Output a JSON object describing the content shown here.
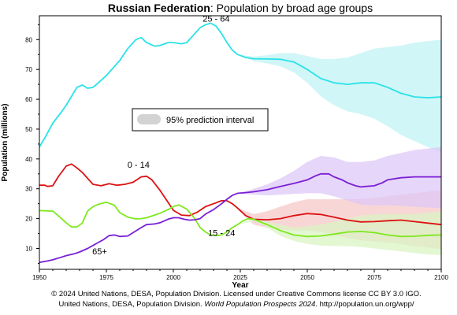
{
  "chart_data": {
    "type": "line",
    "title_bold": "Russian Federation",
    "title_rest": ": Population by broad age groups",
    "xlabel": "Year",
    "ylabel": "Population (millions)",
    "xlim": [
      1950,
      2100
    ],
    "ylim": [
      3,
      88
    ],
    "x_ticks": [
      1950,
      1975,
      2000,
      2025,
      2050,
      2075,
      2100
    ],
    "y_ticks": [
      10,
      20,
      30,
      40,
      50,
      60,
      70,
      80
    ],
    "projection_start": 2024,
    "legend": {
      "label": "95% prediction interval",
      "color": "#d3d3d3",
      "placement": "center-left"
    },
    "series": [
      {
        "name": "25 - 64",
        "color": "#29e2e8",
        "band_color": "#bff2f4",
        "label_x": 2016,
        "label_y": 86,
        "points": [
          [
            1950,
            44
          ],
          [
            1952,
            47
          ],
          [
            1955,
            52
          ],
          [
            1958,
            55.5
          ],
          [
            1960,
            58
          ],
          [
            1962,
            61
          ],
          [
            1964,
            64
          ],
          [
            1966,
            64.8
          ],
          [
            1968,
            63.7
          ],
          [
            1970,
            64
          ],
          [
            1972,
            65.5
          ],
          [
            1975,
            68
          ],
          [
            1978,
            71
          ],
          [
            1980,
            73
          ],
          [
            1983,
            77
          ],
          [
            1986,
            80
          ],
          [
            1988,
            80.7
          ],
          [
            1990,
            79
          ],
          [
            1993,
            77.8
          ],
          [
            1995,
            78
          ],
          [
            1998,
            79
          ],
          [
            2000,
            79
          ],
          [
            2003,
            78.6
          ],
          [
            2005,
            79
          ],
          [
            2008,
            82
          ],
          [
            2010,
            84
          ],
          [
            2012,
            85
          ],
          [
            2014,
            85.5
          ],
          [
            2016,
            84.5
          ],
          [
            2018,
            82
          ],
          [
            2020,
            79
          ],
          [
            2022,
            76.5
          ],
          [
            2024,
            75
          ],
          [
            2027,
            74
          ],
          [
            2030,
            73.6
          ],
          [
            2035,
            73.5
          ],
          [
            2040,
            73.4
          ],
          [
            2045,
            72.5
          ],
          [
            2050,
            70
          ],
          [
            2055,
            67
          ],
          [
            2060,
            65.5
          ],
          [
            2065,
            65
          ],
          [
            2070,
            65.5
          ],
          [
            2075,
            65.5
          ],
          [
            2080,
            64
          ],
          [
            2085,
            62
          ],
          [
            2090,
            60.8
          ],
          [
            2095,
            60.5
          ],
          [
            2100,
            60.8
          ]
        ],
        "band": [
          [
            2024,
            75,
            75
          ],
          [
            2030,
            74.3,
            72.8
          ],
          [
            2035,
            74.8,
            72
          ],
          [
            2040,
            75.5,
            71
          ],
          [
            2045,
            75.5,
            69
          ],
          [
            2050,
            74.5,
            65.5
          ],
          [
            2055,
            73.5,
            61
          ],
          [
            2060,
            73.5,
            58
          ],
          [
            2065,
            74,
            56
          ],
          [
            2070,
            75.5,
            55
          ],
          [
            2075,
            77,
            53.5
          ],
          [
            2080,
            77.5,
            51
          ],
          [
            2085,
            78,
            48
          ],
          [
            2090,
            79,
            46
          ],
          [
            2095,
            79.5,
            44
          ],
          [
            2100,
            80,
            42
          ]
        ]
      },
      {
        "name": "0 - 14",
        "color": "#dd1111",
        "band_color": "#f6c6c6",
        "label_x": 1987,
        "label_y": 37,
        "points": [
          [
            1950,
            31.2
          ],
          [
            1952,
            31.2
          ],
          [
            1953,
            30.8
          ],
          [
            1955,
            31
          ],
          [
            1957,
            34
          ],
          [
            1960,
            37.6
          ],
          [
            1962,
            38.3
          ],
          [
            1964,
            37
          ],
          [
            1966,
            35.5
          ],
          [
            1968,
            33.5
          ],
          [
            1970,
            31.5
          ],
          [
            1973,
            31
          ],
          [
            1976,
            31.7
          ],
          [
            1979,
            31.2
          ],
          [
            1982,
            31.5
          ],
          [
            1985,
            32.2
          ],
          [
            1988,
            34
          ],
          [
            1990,
            34.2
          ],
          [
            1992,
            33
          ],
          [
            1995,
            29.5
          ],
          [
            1998,
            25.5
          ],
          [
            2000,
            22.8
          ],
          [
            2003,
            21.2
          ],
          [
            2006,
            21
          ],
          [
            2009,
            22.2
          ],
          [
            2012,
            24
          ],
          [
            2015,
            25
          ],
          [
            2018,
            26
          ],
          [
            2020,
            26
          ],
          [
            2022,
            25
          ],
          [
            2024,
            23.5
          ],
          [
            2027,
            21
          ],
          [
            2030,
            19.8
          ],
          [
            2035,
            19.6
          ],
          [
            2040,
            20
          ],
          [
            2045,
            21
          ],
          [
            2050,
            21.7
          ],
          [
            2055,
            21.4
          ],
          [
            2060,
            20.5
          ],
          [
            2065,
            19.5
          ],
          [
            2070,
            18.9
          ],
          [
            2075,
            19
          ],
          [
            2080,
            19.3
          ],
          [
            2085,
            19.5
          ],
          [
            2090,
            19
          ],
          [
            2095,
            18.5
          ],
          [
            2100,
            18
          ]
        ],
        "band": [
          [
            2024,
            23.5,
            23.5
          ],
          [
            2030,
            21.5,
            18
          ],
          [
            2035,
            22.5,
            17
          ],
          [
            2040,
            24,
            16.3
          ],
          [
            2045,
            25.5,
            16
          ],
          [
            2050,
            26.5,
            16
          ],
          [
            2055,
            26.5,
            15.5
          ],
          [
            2060,
            26.5,
            14.5
          ],
          [
            2065,
            26.5,
            13.5
          ],
          [
            2070,
            26.5,
            12.7
          ],
          [
            2075,
            27,
            12.3
          ],
          [
            2080,
            27.5,
            12
          ],
          [
            2085,
            28,
            11.5
          ],
          [
            2090,
            28.5,
            10.8
          ],
          [
            2095,
            29,
            10.3
          ],
          [
            2100,
            29.5,
            9.8
          ]
        ]
      },
      {
        "name": "15 - 24",
        "color": "#7ee81e",
        "band_color": "#d8f4c2",
        "label_x": 2018,
        "label_y": 14.2,
        "points": [
          [
            1950,
            22.7
          ],
          [
            1953,
            22.6
          ],
          [
            1955,
            22.5
          ],
          [
            1957,
            21
          ],
          [
            1960,
            18.6
          ],
          [
            1962,
            17.2
          ],
          [
            1964,
            17.2
          ],
          [
            1966,
            18.5
          ],
          [
            1968,
            22.5
          ],
          [
            1970,
            24
          ],
          [
            1972,
            24.8
          ],
          [
            1975,
            25.5
          ],
          [
            1978,
            24.5
          ],
          [
            1980,
            22
          ],
          [
            1983,
            20.5
          ],
          [
            1986,
            19.9
          ],
          [
            1988,
            20
          ],
          [
            1990,
            20.3
          ],
          [
            1993,
            21.2
          ],
          [
            1995,
            21.8
          ],
          [
            1998,
            23
          ],
          [
            2000,
            24
          ],
          [
            2002,
            24.6
          ],
          [
            2005,
            23.2
          ],
          [
            2008,
            20
          ],
          [
            2010,
            17
          ],
          [
            2012,
            15.5
          ],
          [
            2014,
            14.5
          ],
          [
            2016,
            14.3
          ],
          [
            2018,
            14.5
          ],
          [
            2020,
            15.5
          ],
          [
            2022,
            17
          ],
          [
            2024,
            18
          ],
          [
            2026,
            19.3
          ],
          [
            2028,
            20
          ],
          [
            2030,
            19.8
          ],
          [
            2035,
            18
          ],
          [
            2040,
            16
          ],
          [
            2045,
            14.5
          ],
          [
            2050,
            14
          ],
          [
            2055,
            14.2
          ],
          [
            2060,
            14.8
          ],
          [
            2065,
            15.5
          ],
          [
            2070,
            15.7
          ],
          [
            2075,
            15.3
          ],
          [
            2080,
            14.5
          ],
          [
            2085,
            14
          ],
          [
            2090,
            14.1
          ],
          [
            2095,
            14.4
          ],
          [
            2100,
            14.5
          ]
        ],
        "band": [
          [
            2024,
            18,
            18
          ],
          [
            2030,
            20.3,
            19.2
          ],
          [
            2035,
            19,
            17
          ],
          [
            2040,
            18,
            14.2
          ],
          [
            2045,
            17,
            12.5
          ],
          [
            2050,
            17.5,
            11.5
          ],
          [
            2055,
            18,
            11
          ],
          [
            2060,
            19,
            10.8
          ],
          [
            2065,
            20,
            10.8
          ],
          [
            2070,
            21,
            10.5
          ],
          [
            2075,
            21.5,
            10
          ],
          [
            2080,
            21.5,
            9.5
          ],
          [
            2085,
            21.5,
            9
          ],
          [
            2090,
            21.5,
            8.5
          ],
          [
            2095,
            22,
            8
          ],
          [
            2100,
            22.5,
            7.8
          ]
        ]
      },
      {
        "name": "65+",
        "color": "#7a1fd6",
        "band_color": "#dcc6f7",
        "label_x": 1972.5,
        "label_y": 8,
        "points": [
          [
            1950,
            5.3
          ],
          [
            1953,
            5.8
          ],
          [
            1955,
            6.2
          ],
          [
            1958,
            7
          ],
          [
            1960,
            7.6
          ],
          [
            1963,
            8.2
          ],
          [
            1965,
            8.8
          ],
          [
            1968,
            10
          ],
          [
            1970,
            11
          ],
          [
            1972,
            12
          ],
          [
            1974,
            13
          ],
          [
            1976,
            14.3
          ],
          [
            1978,
            14.5
          ],
          [
            1980,
            14
          ],
          [
            1983,
            14.2
          ],
          [
            1985,
            15.3
          ],
          [
            1988,
            17
          ],
          [
            1990,
            18
          ],
          [
            1993,
            18.2
          ],
          [
            1995,
            18.6
          ],
          [
            1998,
            19.8
          ],
          [
            2000,
            20.3
          ],
          [
            2002,
            20.3
          ],
          [
            2004,
            19.8
          ],
          [
            2006,
            19.5
          ],
          [
            2008,
            19.6
          ],
          [
            2010,
            20
          ],
          [
            2012,
            21.5
          ],
          [
            2015,
            23
          ],
          [
            2018,
            25
          ],
          [
            2020,
            26.5
          ],
          [
            2022,
            27.8
          ],
          [
            2024,
            28.5
          ],
          [
            2027,
            28.7
          ],
          [
            2030,
            29
          ],
          [
            2035,
            29.7
          ],
          [
            2040,
            30.8
          ],
          [
            2045,
            31.8
          ],
          [
            2050,
            33
          ],
          [
            2053,
            34.3
          ],
          [
            2055,
            35
          ],
          [
            2058,
            35
          ],
          [
            2060,
            34
          ],
          [
            2063,
            33
          ],
          [
            2065,
            32
          ],
          [
            2068,
            31
          ],
          [
            2070,
            30.6
          ],
          [
            2072,
            30.8
          ],
          [
            2075,
            31
          ],
          [
            2078,
            32
          ],
          [
            2080,
            33
          ],
          [
            2085,
            33.7
          ],
          [
            2090,
            34
          ],
          [
            2095,
            34
          ],
          [
            2100,
            34
          ]
        ],
        "band": [
          [
            2024,
            28.5,
            28.5
          ],
          [
            2030,
            30,
            28
          ],
          [
            2035,
            31.5,
            27.8
          ],
          [
            2040,
            33.5,
            28
          ],
          [
            2045,
            36,
            28.3
          ],
          [
            2050,
            39,
            28.5
          ],
          [
            2055,
            41,
            28.5
          ],
          [
            2060,
            40.5,
            27.5
          ],
          [
            2065,
            39,
            26
          ],
          [
            2070,
            39,
            24.7
          ],
          [
            2075,
            39.5,
            24.3
          ],
          [
            2080,
            41,
            24.5
          ],
          [
            2085,
            42,
            24.3
          ],
          [
            2090,
            43,
            24
          ],
          [
            2095,
            43.5,
            23.7
          ],
          [
            2100,
            44,
            23.5
          ]
        ]
      }
    ]
  },
  "footer": {
    "copyright": "© 2024 United Nations, DESA, Population Division. Licensed under Creative Commons license CC BY 3.0 IGO.",
    "source_prefix": "United Nations, DESA, Population Division. ",
    "source_title": "World Population Prospects 2024",
    "source_suffix": ". http://population.un.org/wpp/"
  }
}
